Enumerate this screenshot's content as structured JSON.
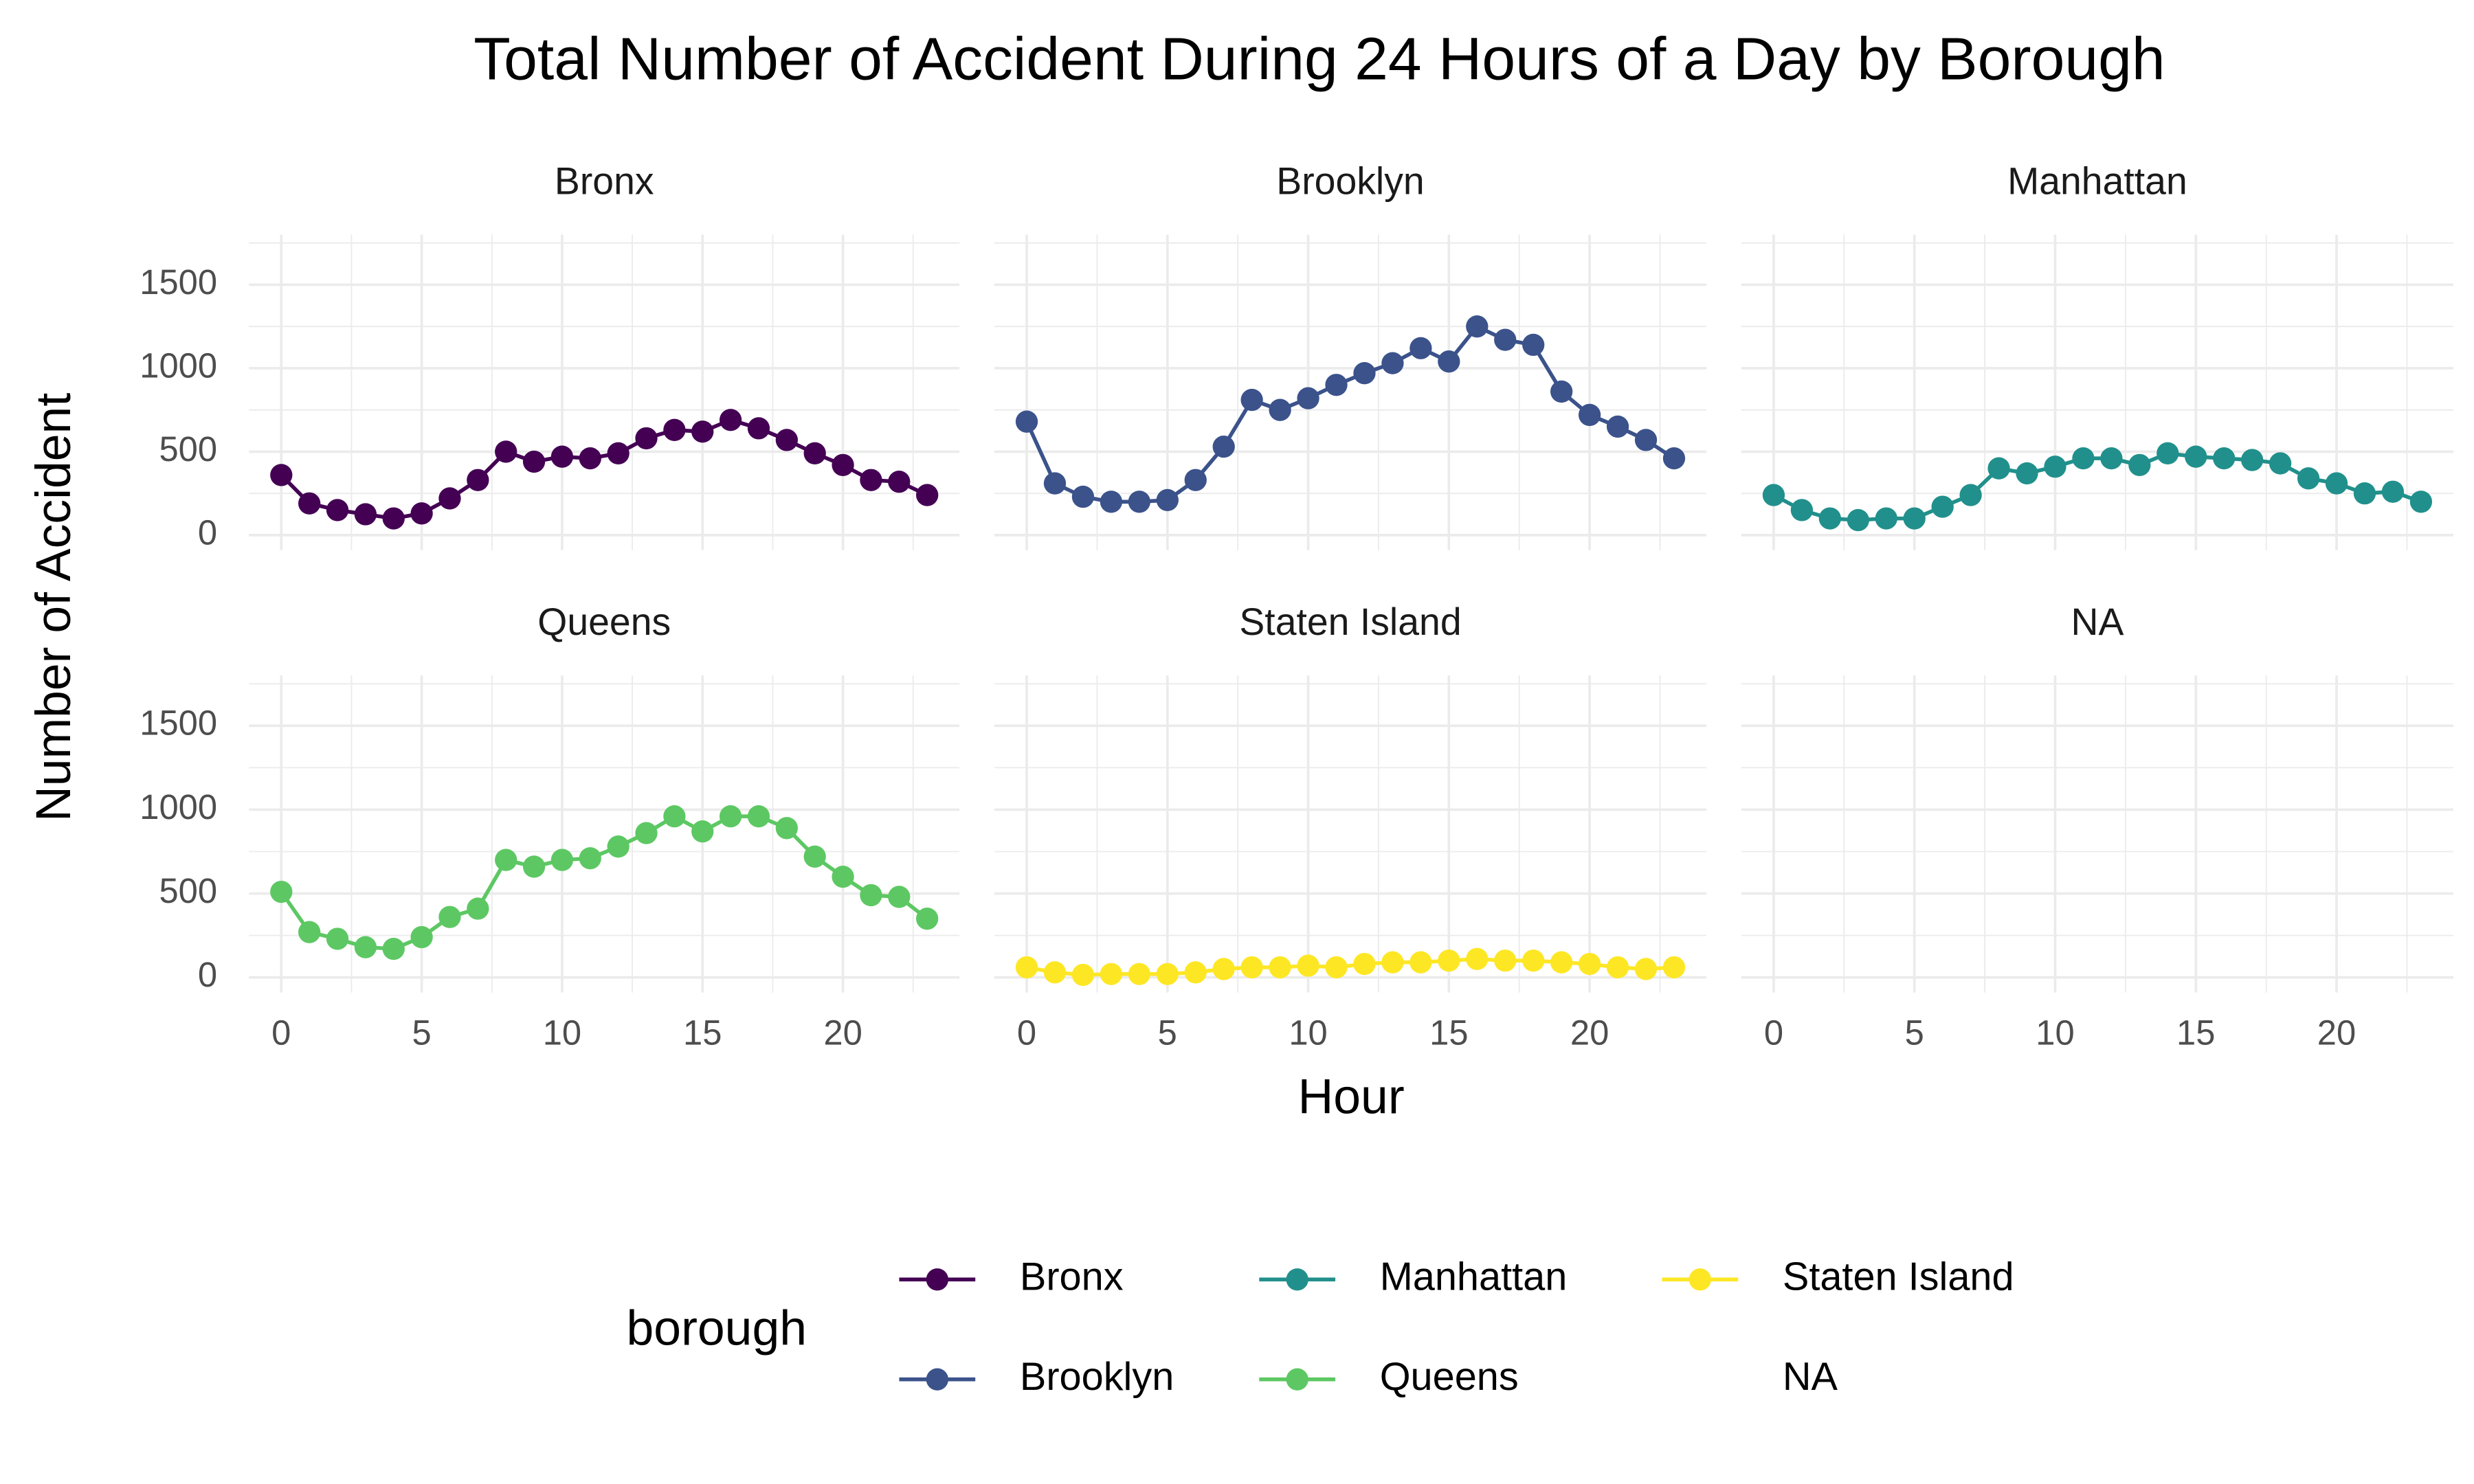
{
  "chart_data": {
    "type": "line",
    "title": "Total Number of Accident During 24 Hours of a Day by Borough",
    "x_label": "Hour",
    "y_label": "Number of Accident",
    "legend_title": "borough",
    "x": [
      0,
      1,
      2,
      3,
      4,
      5,
      6,
      7,
      8,
      9,
      10,
      11,
      12,
      13,
      14,
      15,
      16,
      17,
      18,
      19,
      20,
      21,
      22,
      23
    ],
    "xlim": [
      -1.15,
      24.15
    ],
    "xticks": [
      0,
      5,
      10,
      15,
      20
    ],
    "ylim": [
      -90,
      1800
    ],
    "yticks": [
      0,
      500,
      1000,
      1500
    ],
    "grid": true,
    "legend": "bottom",
    "series": [
      {
        "name": "Bronx",
        "color": "#440154",
        "values": [
          360,
          190,
          150,
          125,
          100,
          130,
          220,
          330,
          500,
          440,
          470,
          460,
          490,
          580,
          630,
          620,
          690,
          640,
          570,
          490,
          420,
          330,
          320,
          240
        ]
      },
      {
        "name": "Brooklyn",
        "color": "#3b528b",
        "values": [
          680,
          310,
          230,
          200,
          200,
          210,
          330,
          530,
          810,
          750,
          820,
          900,
          970,
          1030,
          1120,
          1040,
          1250,
          1170,
          1140,
          860,
          720,
          650,
          570,
          460
        ]
      },
      {
        "name": "Manhattan",
        "color": "#21908c",
        "values": [
          240,
          150,
          100,
          90,
          100,
          100,
          170,
          240,
          400,
          370,
          410,
          460,
          460,
          420,
          490,
          470,
          460,
          450,
          430,
          340,
          310,
          250,
          260,
          200
        ]
      },
      {
        "name": "Queens",
        "color": "#5dc863",
        "values": [
          510,
          270,
          230,
          180,
          170,
          240,
          360,
          410,
          700,
          660,
          700,
          710,
          780,
          860,
          960,
          870,
          960,
          960,
          890,
          720,
          600,
          490,
          480,
          350
        ]
      },
      {
        "name": "Staten Island",
        "color": "#fde725",
        "values": [
          60,
          30,
          15,
          20,
          20,
          20,
          30,
          50,
          60,
          60,
          70,
          60,
          80,
          90,
          90,
          100,
          110,
          100,
          100,
          90,
          80,
          60,
          50,
          60
        ]
      },
      {
        "name": "NA",
        "color": null,
        "values": [
          null,
          null,
          null,
          null,
          null,
          null,
          null,
          null,
          null,
          null,
          null,
          null,
          null,
          null,
          null,
          null,
          null,
          null,
          null,
          null,
          null,
          null,
          null,
          null
        ]
      }
    ]
  }
}
